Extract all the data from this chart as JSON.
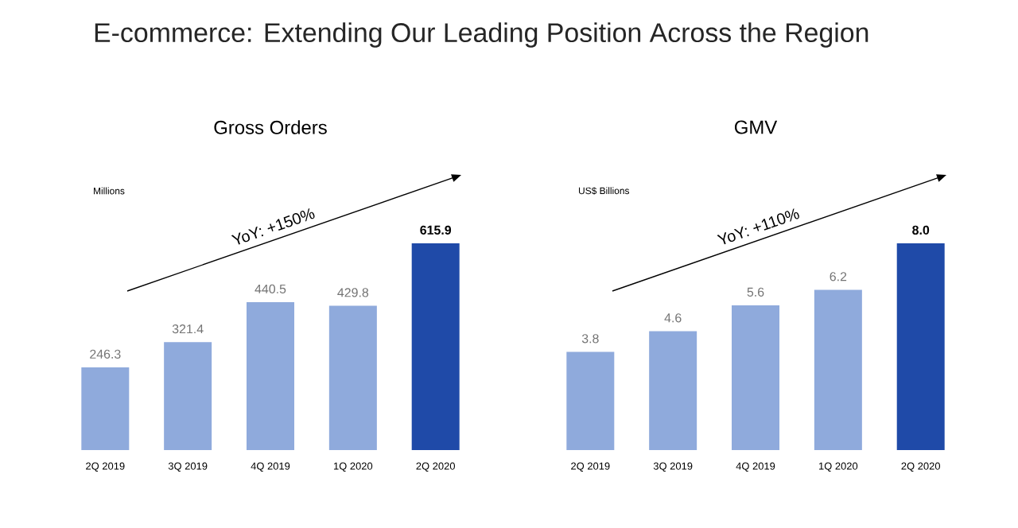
{
  "chart_data": [
    {
      "type": "bar",
      "title": "E-commerce: Extending Our Leading Position Across the Region",
      "subtitle": "Gross Orders",
      "ylabel": "Millions",
      "categories": [
        "2Q 2019",
        "3Q 2019",
        "4Q 2019",
        "1Q 2020",
        "2Q 2020"
      ],
      "values": [
        246.3,
        321.4,
        440.5,
        429.8,
        615.9
      ],
      "colors": [
        "#8faadc",
        "#8faadc",
        "#8faadc",
        "#8faadc",
        "#1f4aa8"
      ],
      "data_labels": true,
      "annotations": [
        "YoY: +150%"
      ]
    },
    {
      "type": "bar",
      "subtitle": "GMV",
      "ylabel": "US$ Billions",
      "categories": [
        "2Q 2019",
        "3Q 2019",
        "4Q 2019",
        "1Q 2020",
        "2Q 2020"
      ],
      "values": [
        3.8,
        4.6,
        5.6,
        6.2,
        8.0
      ],
      "value_labels": [
        "3.8",
        "4.6",
        "5.6",
        "6.2",
        "8.0"
      ],
      "colors": [
        "#8faadc",
        "#8faadc",
        "#8faadc",
        "#8faadc",
        "#1f4aa8"
      ],
      "annotations": [
        "YoY: +110%"
      ]
    }
  ]
}
